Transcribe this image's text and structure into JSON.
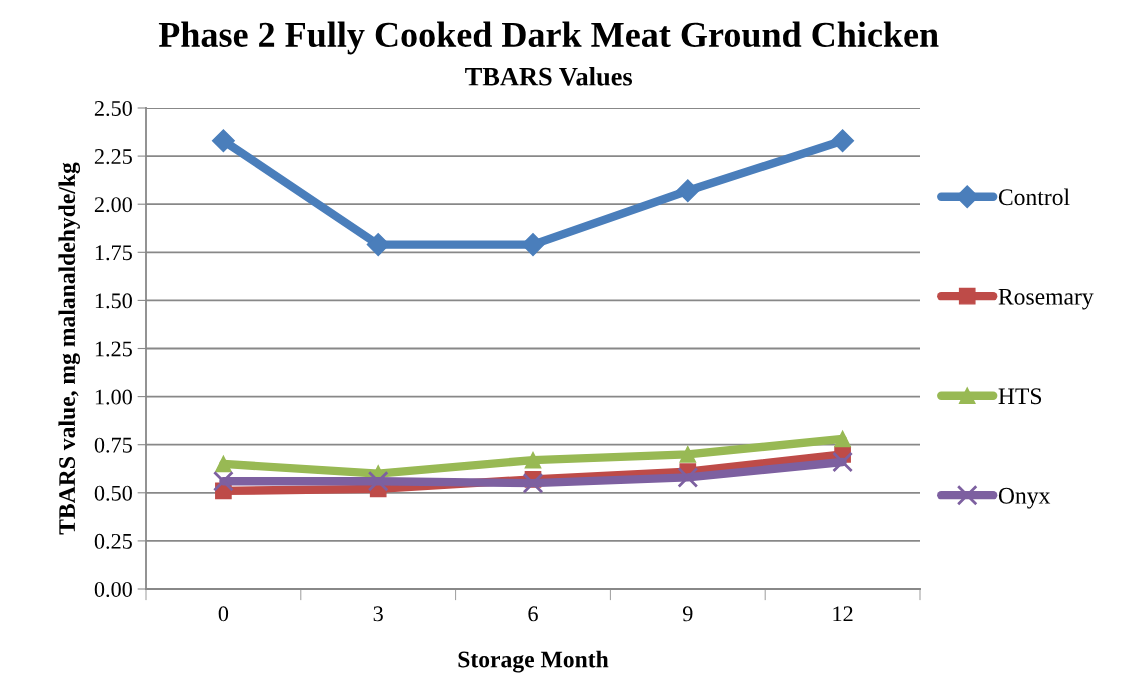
{
  "chart_data": {
    "type": "line",
    "title": "Phase 2 Fully Cooked Dark Meat Ground Chicken",
    "subtitle": "TBARS Values",
    "xlabel": "Storage Month",
    "ylabel": "TBARS value, mg malanaldehyde/kg",
    "categories": [
      "0",
      "3",
      "6",
      "9",
      "12"
    ],
    "series": [
      {
        "name": "Control",
        "color": "#4a7ebb",
        "marker": "diamond",
        "values": [
          2.33,
          1.79,
          1.79,
          2.07,
          2.33
        ]
      },
      {
        "name": "Rosemary",
        "color": "#be4b48",
        "marker": "square",
        "values": [
          0.51,
          0.52,
          0.57,
          0.61,
          0.7
        ]
      },
      {
        "name": "HTS",
        "color": "#98b954",
        "marker": "triangle",
        "values": [
          0.65,
          0.6,
          0.67,
          0.7,
          0.78
        ]
      },
      {
        "name": "Onyx",
        "color": "#7d60a0",
        "marker": "cross",
        "values": [
          0.56,
          0.56,
          0.55,
          0.58,
          0.66
        ]
      }
    ],
    "ylim": [
      0,
      2.5
    ],
    "yticks": [
      {
        "value": 0,
        "label": "0.00"
      },
      {
        "value": 0.25,
        "label": "0.25"
      },
      {
        "value": 0.5,
        "label": "0.50"
      },
      {
        "value": 0.75,
        "label": "0.75"
      },
      {
        "value": 1,
        "label": "1.00"
      },
      {
        "value": 1.25,
        "label": "1.25"
      },
      {
        "value": 1.5,
        "label": "1.50"
      },
      {
        "value": 1.75,
        "label": "1.75"
      },
      {
        "value": 2,
        "label": "2.00"
      },
      {
        "value": 2.25,
        "label": "2.25"
      },
      {
        "value": 2.5,
        "label": "2.50"
      }
    ],
    "grid": "y",
    "legend": "right",
    "line_style": "solid"
  }
}
